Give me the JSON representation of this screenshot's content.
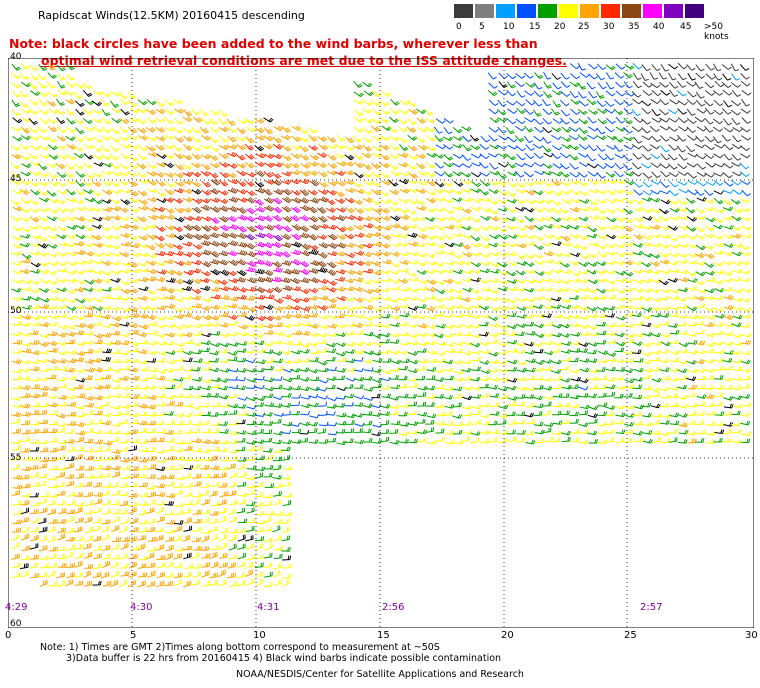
{
  "title": "Rapidscat Winds(12.5KM) 20160415 descending",
  "warning": {
    "line1": "Note: black circles have been added to the wind barbs, wherever less than",
    "line2": "optimal wind retrieval conditions are met due to the ISS attitude changes."
  },
  "scale": {
    "labels": [
      "0",
      "5",
      "10",
      "15",
      "20",
      "25",
      "30",
      "35",
      "40",
      "45",
      ">50 knots"
    ],
    "colors": [
      "#3c3c3c",
      "#7f7f7f",
      "#00a0ff",
      "#0050ff",
      "#00a000",
      "#ffff00",
      "#ffa500",
      "#ff2800",
      "#8b4513",
      "#ff00ff",
      "#8000c0",
      "#400080"
    ]
  },
  "lat_labels": [
    "40",
    "45",
    "50",
    "55",
    "60"
  ],
  "lon_labels": [
    "0",
    "5",
    "10",
    "15",
    "20",
    "25",
    "30"
  ],
  "times": [
    "4:29",
    "4:30",
    "4:31",
    "2:56",
    "2:57"
  ],
  "notes": {
    "line1": "Note: 1) Times are GMT 2)Times along bottom correspond to measurement at ~50S",
    "line2": "3)Data buffer is 22 hrs from 20160415 4) Black wind barbs indicate possible contamination"
  },
  "credit": "NOAA/NESDIS/Center for Satellite Applications and Research"
}
